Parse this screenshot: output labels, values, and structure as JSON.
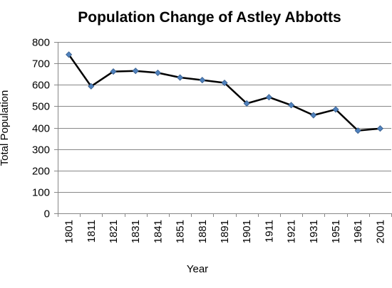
{
  "chart_data": {
    "type": "line",
    "title": "Population Change of Astley Abbotts",
    "xlabel": "Year",
    "ylabel": "Total Population",
    "categories": [
      "1801",
      "1811",
      "1821",
      "1831",
      "1841",
      "1851",
      "1881",
      "1891",
      "1901",
      "1911",
      "1921",
      "1931",
      "1951",
      "1961",
      "2001"
    ],
    "series": [
      {
        "values": [
          741,
          593,
          662,
          665,
          656,
          634,
          622,
          609,
          513,
          542,
          505,
          458,
          485,
          386,
          396
        ]
      }
    ],
    "ylim": [
      0,
      800
    ],
    "yticks": [
      "0",
      "100",
      "200",
      "300",
      "400",
      "500",
      "600",
      "700",
      "800"
    ],
    "grid": true,
    "legend": "none",
    "colors": {
      "line": "#000000",
      "marker_fill": "#4f81bd",
      "marker_stroke": "#385d8a",
      "grid": "#878787"
    }
  }
}
